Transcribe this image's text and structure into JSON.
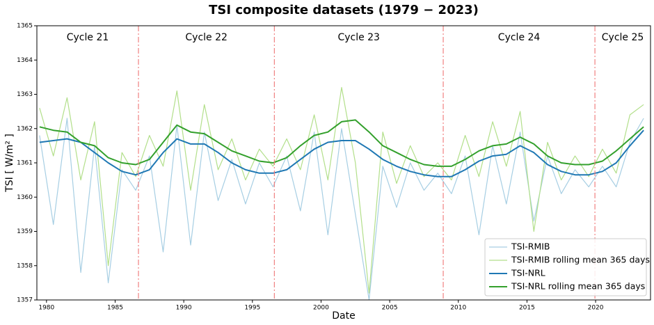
{
  "chart_data": {
    "type": "line",
    "title": "TSI composite datasets (1979 − 2023)",
    "x_label": "Date",
    "y_label": "TSI [ W/m² ]",
    "xlim": [
      1979.3,
      2024.0
    ],
    "ylim": [
      1357,
      1365
    ],
    "xticks": [
      1980,
      1985,
      1990,
      1995,
      2000,
      2005,
      2010,
      2015,
      2020
    ],
    "yticks": [
      1357,
      1358,
      1359,
      1360,
      1361,
      1362,
      1363,
      1364,
      1365
    ],
    "legend": "lower right",
    "cycle_boundaries": [
      1986.7,
      1996.6,
      2008.9,
      2019.95
    ],
    "boundary_color": "#f08080",
    "cycle_labels": [
      "Cycle 21",
      "Cycle 22",
      "Cycle 23",
      "Cycle 24",
      "Cycle 25"
    ],
    "x": [
      1979.5,
      1980.5,
      1981.5,
      1982.5,
      1983.5,
      1984.5,
      1985.5,
      1986.5,
      1987.5,
      1988.5,
      1989.5,
      1990.5,
      1991.5,
      1992.5,
      1993.5,
      1994.5,
      1995.5,
      1996.5,
      1997.5,
      1998.5,
      1999.5,
      2000.5,
      2001.5,
      2002.5,
      2003.5,
      2004.5,
      2005.5,
      2006.5,
      2007.5,
      2008.5,
      2009.5,
      2010.5,
      2011.5,
      2012.5,
      2013.5,
      2014.5,
      2015.5,
      2016.5,
      2017.5,
      2018.5,
      2019.5,
      2020.5,
      2021.5,
      2022.5,
      2023.5
    ],
    "series": [
      {
        "name": "TSI-RMIB",
        "color": "#a6cee3",
        "width": 1.2,
        "values": [
          1361.8,
          1359.2,
          1362.3,
          1357.8,
          1361.5,
          1357.5,
          1360.8,
          1360.2,
          1361.2,
          1358.4,
          1362.1,
          1358.6,
          1361.9,
          1359.9,
          1361.1,
          1359.8,
          1361.0,
          1360.3,
          1361.2,
          1359.6,
          1361.9,
          1358.9,
          1362.0,
          1359.5,
          1357.0,
          1360.9,
          1359.7,
          1361.0,
          1360.2,
          1360.7,
          1360.1,
          1361.2,
          1358.9,
          1361.5,
          1359.8,
          1361.9,
          1359.3,
          1361.2,
          1360.1,
          1360.8,
          1360.3,
          1360.9,
          1360.3,
          1361.6,
          1362.3
        ]
      },
      {
        "name": "TSI-RMIB rolling mean 365 days",
        "color": "#b2df8a",
        "width": 1.2,
        "values": [
          1362.6,
          1361.2,
          1362.9,
          1360.5,
          1362.2,
          1358.0,
          1361.3,
          1360.6,
          1361.8,
          1360.9,
          1363.1,
          1360.2,
          1362.7,
          1360.8,
          1361.7,
          1360.5,
          1361.4,
          1360.9,
          1361.7,
          1360.8,
          1362.4,
          1360.5,
          1363.2,
          1361.0,
          1357.2,
          1361.9,
          1360.4,
          1361.5,
          1360.6,
          1361.0,
          1360.5,
          1361.8,
          1360.6,
          1362.2,
          1360.9,
          1362.5,
          1359.0,
          1361.6,
          1360.5,
          1361.2,
          1360.6,
          1361.4,
          1360.7,
          1362.4,
          1362.7
        ]
      },
      {
        "name": "TSI-NRL",
        "color": "#1f78b4",
        "width": 2,
        "values": [
          1361.6,
          1361.65,
          1361.7,
          1361.6,
          1361.3,
          1361.0,
          1360.75,
          1360.65,
          1360.8,
          1361.3,
          1361.7,
          1361.55,
          1361.55,
          1361.3,
          1361.0,
          1360.8,
          1360.7,
          1360.7,
          1360.8,
          1361.1,
          1361.4,
          1361.6,
          1361.65,
          1361.65,
          1361.4,
          1361.1,
          1360.9,
          1360.75,
          1360.65,
          1360.6,
          1360.6,
          1360.8,
          1361.05,
          1361.2,
          1361.25,
          1361.5,
          1361.3,
          1360.95,
          1360.75,
          1360.65,
          1360.65,
          1360.75,
          1361.0,
          1361.5,
          1361.95
        ]
      },
      {
        "name": "TSI-NRL rolling mean 365 days",
        "color": "#33a02c",
        "width": 2,
        "values": [
          1362.05,
          1361.95,
          1361.9,
          1361.6,
          1361.5,
          1361.15,
          1361.0,
          1360.95,
          1361.1,
          1361.6,
          1362.1,
          1361.9,
          1361.85,
          1361.6,
          1361.35,
          1361.2,
          1361.05,
          1361.0,
          1361.15,
          1361.5,
          1361.8,
          1361.9,
          1362.2,
          1362.25,
          1361.9,
          1361.5,
          1361.3,
          1361.1,
          1360.95,
          1360.9,
          1360.9,
          1361.1,
          1361.35,
          1361.5,
          1361.55,
          1361.75,
          1361.55,
          1361.2,
          1361.0,
          1360.95,
          1360.95,
          1361.05,
          1361.35,
          1361.7,
          1362.05
        ]
      }
    ]
  }
}
